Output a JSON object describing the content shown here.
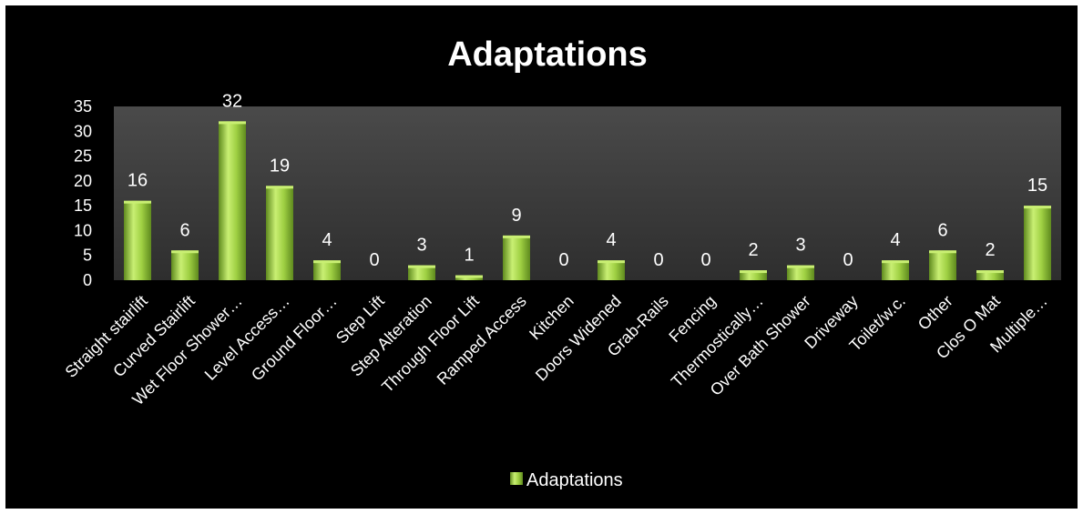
{
  "chart_data": {
    "type": "bar",
    "title": "Adaptations",
    "xlabel": "",
    "ylabel": "",
    "ylim": [
      0,
      35
    ],
    "yticks": [
      0,
      5,
      10,
      15,
      20,
      25,
      30,
      35
    ],
    "grid": false,
    "legend_position": "bottom",
    "categories": [
      "Straight stairlift",
      "Curved Stairlift",
      "Wet Floor Shower…",
      "Level Access…",
      "Ground Floor…",
      "Step Lift",
      "Step Alteration",
      "Through Floor Lift",
      "Ramped Access",
      "Kitchen",
      "Doors Widened",
      "Grab-Rails",
      "Fencing",
      "Thermostically…",
      "Over Bath Shower",
      "Driveway",
      "Toilet/w.c.",
      "Other",
      "Clos O Mat",
      "Multiple…"
    ],
    "series": [
      {
        "name": "Adaptations",
        "values": [
          16,
          6,
          32,
          19,
          4,
          0,
          3,
          1,
          9,
          0,
          4,
          0,
          0,
          2,
          3,
          0,
          4,
          6,
          2,
          15
        ]
      }
    ],
    "colors": {
      "background": "#000000",
      "plot_area": "#3a3a3a",
      "bar": "#8ec33a",
      "bar_highlight": "#c9ef73",
      "bar_dark": "#5f8a1e",
      "text": "#ffffff"
    }
  }
}
